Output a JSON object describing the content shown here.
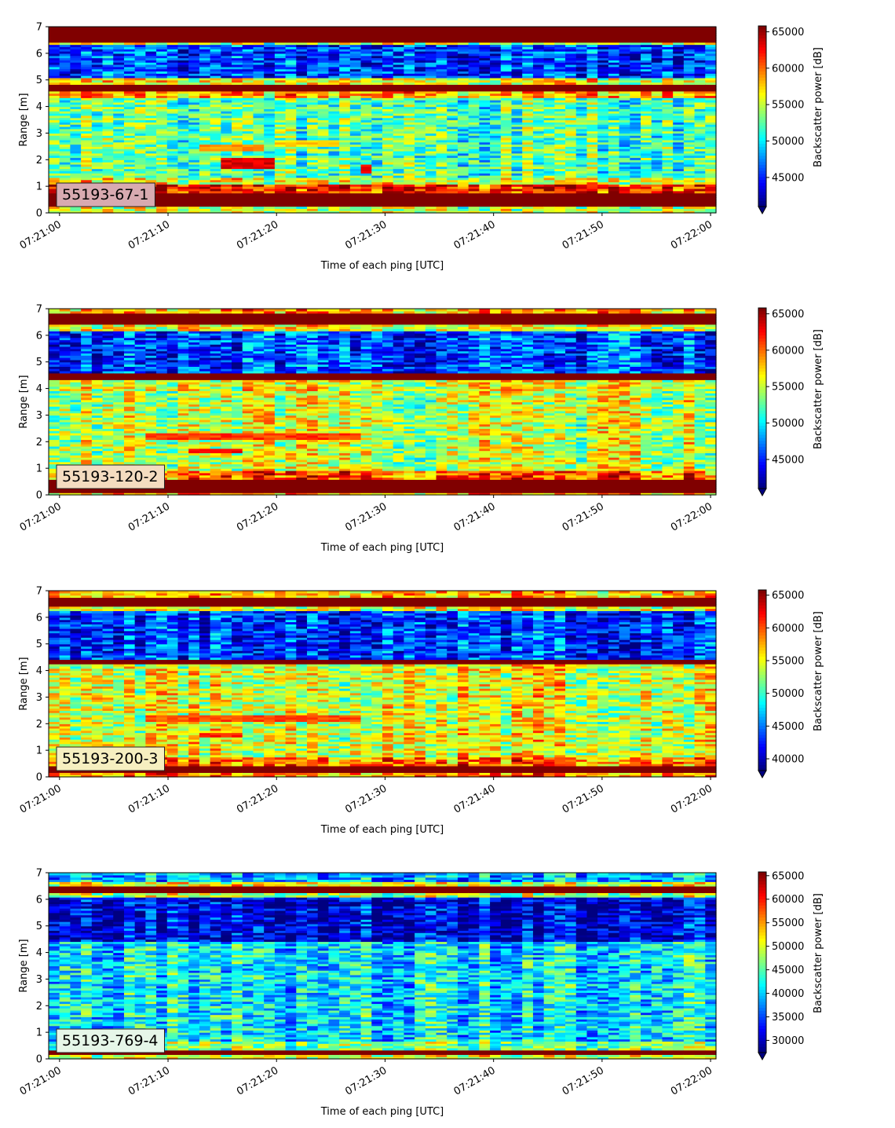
{
  "chart_data": [
    {
      "type": "heatmap",
      "label": "55193-67-1",
      "label_bg": "#d8aab0",
      "xlabel": "Time of each ping [UTC]",
      "ylabel": "Range [m]",
      "x_ticks": [
        "07:21:00",
        "07:21:10",
        "07:21:20",
        "07:21:30",
        "07:21:40",
        "07:21:50",
        "07:22:00"
      ],
      "x_range_seconds": [
        -1,
        60.5
      ],
      "ylim": [
        0,
        7
      ],
      "y_ticks": [
        "0",
        "1",
        "2",
        "3",
        "4",
        "5",
        "6",
        "7"
      ],
      "colorbar_label": "Backscatter power [dB]",
      "colorbar_range": [
        41000,
        65800
      ],
      "colorbar_ticks": [
        45000,
        50000,
        55000,
        60000,
        65000
      ],
      "colormap": "jet",
      "bands": [
        {
          "range": [
            0,
            0.25
          ],
          "level": 0.55
        },
        {
          "range": [
            0.25,
            0.75
          ],
          "level": 1.0
        },
        {
          "range": [
            0.75,
            1.05
          ],
          "level": 0.85
        },
        {
          "range": [
            1.05,
            1.3
          ],
          "level": 0.6
        },
        {
          "range": [
            1.3,
            4.35
          ],
          "level": 0.45
        },
        {
          "range": [
            4.35,
            4.55
          ],
          "level": 0.7
        },
        {
          "range": [
            4.55,
            4.85
          ],
          "level": 1.0
        },
        {
          "range": [
            4.85,
            5.05
          ],
          "level": 0.6
        },
        {
          "range": [
            5.05,
            6.3
          ],
          "level": 0.18
        },
        {
          "range": [
            6.3,
            6.45
          ],
          "level": 0.55
        },
        {
          "range": [
            6.45,
            7.0
          ],
          "level": 1.0
        }
      ],
      "hotspots": [
        {
          "t": [
            13,
            19
          ],
          "r": [
            2.35,
            2.55
          ],
          "level": 0.72
        },
        {
          "t": [
            14.5,
            19.5
          ],
          "r": [
            1.7,
            2.1
          ],
          "level": 0.9
        },
        {
          "t": [
            27.5,
            29
          ],
          "r": [
            1.5,
            1.8
          ],
          "level": 0.9
        },
        {
          "t": [
            20,
            26
          ],
          "r": [
            2.5,
            2.75
          ],
          "level": 0.66
        }
      ]
    },
    {
      "type": "heatmap",
      "label": "55193-120-2",
      "label_bg": "#f4dcc0",
      "xlabel": "Time of each ping [UTC]",
      "ylabel": "Range [m]",
      "x_ticks": [
        "07:21:00",
        "07:21:10",
        "07:21:20",
        "07:21:30",
        "07:21:40",
        "07:21:50",
        "07:22:00"
      ],
      "x_range_seconds": [
        -1,
        60.5
      ],
      "ylim": [
        0,
        7
      ],
      "y_ticks": [
        "0",
        "1",
        "2",
        "3",
        "4",
        "5",
        "6",
        "7"
      ],
      "colorbar_label": "Backscatter power [dB]",
      "colorbar_range": [
        41000,
        65800
      ],
      "colorbar_ticks": [
        45000,
        50000,
        55000,
        60000,
        65000
      ],
      "colormap": "jet",
      "bands": [
        {
          "range": [
            0,
            0.12
          ],
          "level": 0.7
        },
        {
          "range": [
            0.12,
            0.55
          ],
          "level": 1.0
        },
        {
          "range": [
            0.55,
            0.9
          ],
          "level": 0.78
        },
        {
          "range": [
            0.9,
            3.9
          ],
          "level": 0.56
        },
        {
          "range": [
            3.9,
            4.3
          ],
          "level": 0.6
        },
        {
          "range": [
            4.3,
            4.55
          ],
          "level": 1.0
        },
        {
          "range": [
            4.55,
            6.2
          ],
          "level": 0.18
        },
        {
          "range": [
            6.2,
            6.4
          ],
          "level": 0.6
        },
        {
          "range": [
            6.4,
            6.8
          ],
          "level": 1.0
        },
        {
          "range": [
            6.8,
            7.0
          ],
          "level": 0.7
        }
      ],
      "hotspots": [
        {
          "t": [
            8,
            28
          ],
          "r": [
            2.1,
            2.35
          ],
          "level": 0.82
        },
        {
          "t": [
            12,
            17
          ],
          "r": [
            1.55,
            1.75
          ],
          "level": 0.9
        }
      ]
    },
    {
      "type": "heatmap",
      "label": "55193-200-3",
      "label_bg": "#f6efc0",
      "xlabel": "Time of each ping [UTC]",
      "ylabel": "Range [m]",
      "x_ticks": [
        "07:21:00",
        "07:21:10",
        "07:21:20",
        "07:21:30",
        "07:21:40",
        "07:21:50",
        "07:22:00"
      ],
      "x_range_seconds": [
        -1,
        60.5
      ],
      "ylim": [
        0,
        7
      ],
      "y_ticks": [
        "0",
        "1",
        "2",
        "3",
        "4",
        "5",
        "6",
        "7"
      ],
      "colorbar_label": "Backscatter power [dB]",
      "colorbar_range": [
        38200,
        65800
      ],
      "colorbar_ticks": [
        40000,
        45000,
        50000,
        55000,
        60000,
        65000
      ],
      "colormap": "jet",
      "bands": [
        {
          "range": [
            0,
            0.15
          ],
          "level": 0.72
        },
        {
          "range": [
            0.15,
            0.4
          ],
          "level": 1.0
        },
        {
          "range": [
            0.4,
            0.75
          ],
          "level": 0.76
        },
        {
          "range": [
            0.75,
            4.25
          ],
          "level": 0.6
        },
        {
          "range": [
            4.25,
            4.45
          ],
          "level": 1.0
        },
        {
          "range": [
            4.45,
            6.25
          ],
          "level": 0.18
        },
        {
          "range": [
            6.25,
            6.4
          ],
          "level": 0.6
        },
        {
          "range": [
            6.4,
            6.75
          ],
          "level": 1.0
        },
        {
          "range": [
            6.75,
            7.0
          ],
          "level": 0.68
        }
      ],
      "hotspots": [
        {
          "t": [
            8,
            28
          ],
          "r": [
            2.1,
            2.35
          ],
          "level": 0.8
        },
        {
          "t": [
            13,
            17
          ],
          "r": [
            1.5,
            1.7
          ],
          "level": 0.86
        }
      ]
    },
    {
      "type": "heatmap",
      "label": "55193-769-4",
      "label_bg": "#e6f6e8",
      "xlabel": "Time of each ping [UTC]",
      "ylabel": "Range [m]",
      "x_ticks": [
        "07:21:00",
        "07:21:10",
        "07:21:20",
        "07:21:30",
        "07:21:40",
        "07:21:50",
        "07:22:00"
      ],
      "x_range_seconds": [
        -1,
        60.5
      ],
      "ylim": [
        0,
        7
      ],
      "y_ticks": [
        "0",
        "1",
        "2",
        "3",
        "4",
        "5",
        "6",
        "7"
      ],
      "colorbar_label": "Backscatter power [dB]",
      "colorbar_range": [
        27400,
        65800
      ],
      "colorbar_ticks": [
        30000,
        35000,
        40000,
        45000,
        50000,
        55000,
        60000,
        65000
      ],
      "colormap": "jet",
      "bands": [
        {
          "range": [
            0,
            0.15
          ],
          "level": 0.58
        },
        {
          "range": [
            0.15,
            0.3
          ],
          "level": 1.0
        },
        {
          "range": [
            0.3,
            0.7
          ],
          "level": 0.5
        },
        {
          "range": [
            0.7,
            4.4
          ],
          "level": 0.36
        },
        {
          "range": [
            4.4,
            6.1
          ],
          "level": 0.1
        },
        {
          "range": [
            6.1,
            6.25
          ],
          "level": 0.55
        },
        {
          "range": [
            6.25,
            6.5
          ],
          "level": 1.0
        },
        {
          "range": [
            6.5,
            6.65
          ],
          "level": 0.6
        },
        {
          "range": [
            6.65,
            7.0
          ],
          "level": 0.3
        }
      ],
      "hotspots": [
        {
          "t": [
            14,
            17
          ],
          "r": [
            1.5,
            1.65
          ],
          "level": 0.55
        }
      ]
    }
  ]
}
